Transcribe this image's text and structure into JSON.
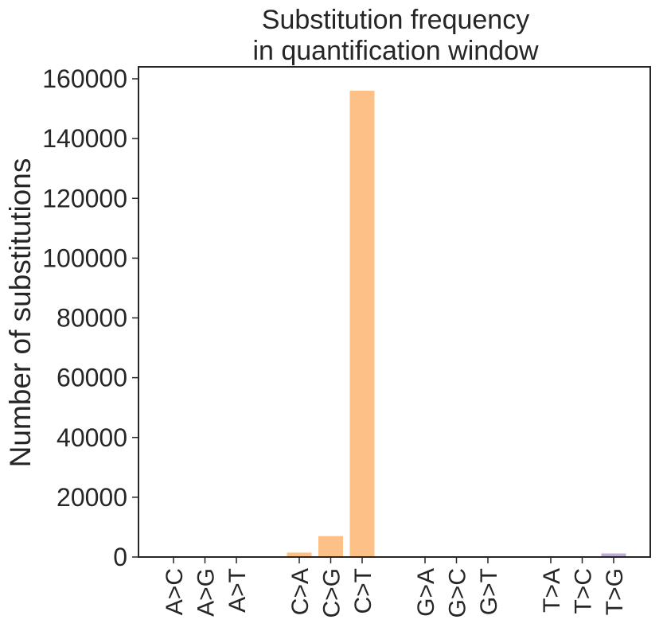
{
  "chart_data": {
    "type": "bar",
    "title_lines": [
      "Substitution frequency",
      "in quantification window"
    ],
    "xlabel": "",
    "ylabel": "Number of substitutions",
    "ylim": [
      0,
      164000
    ],
    "yticks": [
      0,
      20000,
      40000,
      60000,
      80000,
      100000,
      120000,
      140000,
      160000
    ],
    "ytick_labels": [
      "0",
      "20000",
      "40000",
      "60000",
      "80000",
      "100000",
      "120000",
      "140000",
      "160000"
    ],
    "grid": false,
    "categories": [
      "A>C",
      "A>G",
      "A>T",
      "C>A",
      "C>G",
      "C>T",
      "G>A",
      "G>C",
      "G>T",
      "T>A",
      "T>C",
      "T>G"
    ],
    "values": [
      0,
      0,
      0,
      1500,
      7000,
      156000,
      0,
      0,
      0,
      0,
      0,
      1200
    ],
    "groups": [
      "A",
      "A",
      "A",
      "C",
      "C",
      "C",
      "G",
      "G",
      "G",
      "T",
      "T",
      "T"
    ],
    "colors": {
      "A": "#7fc97f",
      "C": "#fdc086",
      "G": "#beaed4",
      "T": "#beaed4",
      "axes": "#262626"
    }
  }
}
